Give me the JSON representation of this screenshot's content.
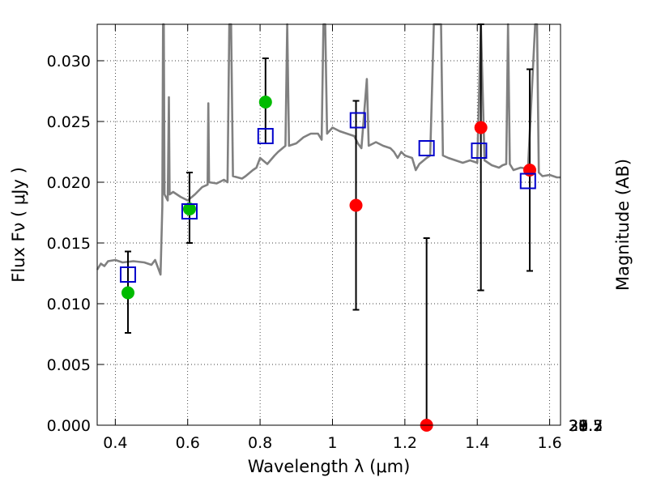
{
  "chart_data": {
    "type": "scatter",
    "title": "",
    "xlabel": "Wavelength  λ (μm)",
    "ylabel": "Flux  Fν  ( μJy )",
    "y2label": "Magnitude (AB)",
    "xlim": [
      0.35,
      1.63
    ],
    "ylim": [
      0.0,
      0.033
    ],
    "grid": true,
    "x_ticks": [
      0.4,
      0.6,
      0.8,
      1.0,
      1.2,
      1.4,
      1.6
    ],
    "x_tick_labels": [
      "0.4",
      "0.6",
      "0.8",
      "1",
      "1.2",
      "1.4",
      "1.6"
    ],
    "y_ticks": [
      0.0,
      0.005,
      0.01,
      0.015,
      0.02,
      0.025,
      0.03
    ],
    "y_tick_labels": [
      "0.000",
      "0.005",
      "0.010",
      "0.015",
      "0.020",
      "0.025",
      "0.030"
    ],
    "mag_ticks": [
      27.7,
      28,
      28.2,
      28.5,
      29,
      29.5,
      30,
      31
    ],
    "mag_tick_labels": [
      "27.7",
      "28",
      "28.2",
      "28.5",
      "29",
      "29.5",
      "30",
      "31"
    ],
    "series": [
      {
        "name": "model-spectrum",
        "kind": "line",
        "color": "#808080",
        "points": [
          [
            0.35,
            0.0128
          ],
          [
            0.36,
            0.0133
          ],
          [
            0.37,
            0.0131
          ],
          [
            0.38,
            0.0135
          ],
          [
            0.4,
            0.0136
          ],
          [
            0.42,
            0.0134
          ],
          [
            0.45,
            0.0135
          ],
          [
            0.48,
            0.0134
          ],
          [
            0.5,
            0.0132
          ],
          [
            0.51,
            0.0136
          ],
          [
            0.52,
            0.0128
          ],
          [
            0.525,
            0.0124
          ],
          [
            0.53,
            0.018
          ],
          [
            0.532,
            0.033
          ],
          [
            0.534,
            0.033
          ],
          [
            0.536,
            0.019
          ],
          [
            0.545,
            0.0185
          ],
          [
            0.548,
            0.027
          ],
          [
            0.55,
            0.019
          ],
          [
            0.56,
            0.0192
          ],
          [
            0.58,
            0.0188
          ],
          [
            0.6,
            0.0185
          ],
          [
            0.62,
            0.019
          ],
          [
            0.64,
            0.0196
          ],
          [
            0.655,
            0.0198
          ],
          [
            0.657,
            0.0265
          ],
          [
            0.659,
            0.02
          ],
          [
            0.68,
            0.0199
          ],
          [
            0.7,
            0.0202
          ],
          [
            0.71,
            0.02
          ],
          [
            0.715,
            0.033
          ],
          [
            0.72,
            0.033
          ],
          [
            0.725,
            0.0205
          ],
          [
            0.75,
            0.0203
          ],
          [
            0.76,
            0.0205
          ],
          [
            0.78,
            0.021
          ],
          [
            0.79,
            0.0212
          ],
          [
            0.8,
            0.022
          ],
          [
            0.82,
            0.0215
          ],
          [
            0.84,
            0.0222
          ],
          [
            0.85,
            0.0225
          ],
          [
            0.87,
            0.023
          ],
          [
            0.875,
            0.033
          ],
          [
            0.88,
            0.023
          ],
          [
            0.9,
            0.0232
          ],
          [
            0.92,
            0.0237
          ],
          [
            0.94,
            0.024
          ],
          [
            0.96,
            0.024
          ],
          [
            0.97,
            0.0235
          ],
          [
            0.975,
            0.033
          ],
          [
            0.98,
            0.033
          ],
          [
            0.985,
            0.024
          ],
          [
            1.0,
            0.0245
          ],
          [
            1.02,
            0.0242
          ],
          [
            1.04,
            0.024
          ],
          [
            1.06,
            0.0238
          ],
          [
            1.07,
            0.0232
          ],
          [
            1.08,
            0.0228
          ],
          [
            1.095,
            0.0285
          ],
          [
            1.1,
            0.023
          ],
          [
            1.12,
            0.0233
          ],
          [
            1.14,
            0.023
          ],
          [
            1.16,
            0.0228
          ],
          [
            1.17,
            0.0225
          ],
          [
            1.18,
            0.022
          ],
          [
            1.19,
            0.0225
          ],
          [
            1.2,
            0.0222
          ],
          [
            1.22,
            0.022
          ],
          [
            1.23,
            0.021
          ],
          [
            1.24,
            0.0215
          ],
          [
            1.26,
            0.022
          ],
          [
            1.27,
            0.0222
          ],
          [
            1.28,
            0.033
          ],
          [
            1.3,
            0.033
          ],
          [
            1.305,
            0.0222
          ],
          [
            1.32,
            0.022
          ],
          [
            1.34,
            0.0218
          ],
          [
            1.36,
            0.0216
          ],
          [
            1.38,
            0.0218
          ],
          [
            1.4,
            0.0216
          ],
          [
            1.41,
            0.033
          ],
          [
            1.42,
            0.0218
          ],
          [
            1.44,
            0.0214
          ],
          [
            1.46,
            0.0212
          ],
          [
            1.47,
            0.0214
          ],
          [
            1.48,
            0.0215
          ],
          [
            1.485,
            0.033
          ],
          [
            1.49,
            0.0215
          ],
          [
            1.5,
            0.021
          ],
          [
            1.52,
            0.0212
          ],
          [
            1.54,
            0.0211
          ],
          [
            1.56,
            0.033
          ],
          [
            1.565,
            0.033
          ],
          [
            1.57,
            0.0208
          ],
          [
            1.58,
            0.0205
          ],
          [
            1.6,
            0.0206
          ],
          [
            1.62,
            0.0204
          ],
          [
            1.63,
            0.0204
          ]
        ]
      },
      {
        "name": "observed-green",
        "kind": "points",
        "color": "#00bb00",
        "x": [
          0.435,
          0.605,
          0.815
        ],
        "y": [
          0.0109,
          0.0178,
          0.0266
        ]
      },
      {
        "name": "observed-red",
        "kind": "points",
        "color": "#ff0000",
        "x": [
          1.065,
          1.26,
          1.41,
          1.545
        ],
        "y": [
          0.0181,
          0.0,
          0.0245,
          0.021
        ]
      },
      {
        "name": "model-squares",
        "kind": "points",
        "color": "#0000cc",
        "x": [
          0.435,
          0.605,
          0.815,
          1.07,
          1.26,
          1.405,
          1.54
        ],
        "y": [
          0.0124,
          0.0176,
          0.0238,
          0.0251,
          0.0228,
          0.0226,
          0.0201
        ]
      },
      {
        "name": "error-bars",
        "kind": "errorbar",
        "color": "#000000",
        "x": [
          0.435,
          0.605,
          0.815,
          1.065,
          1.26,
          1.41,
          1.545
        ],
        "ylow": [
          0.0076,
          0.015,
          0.0232,
          0.0095,
          0.0,
          0.0111,
          0.0127
        ],
        "yhigh": [
          0.0143,
          0.0208,
          0.0302,
          0.0267,
          0.0154,
          0.033,
          0.0293
        ]
      }
    ]
  }
}
